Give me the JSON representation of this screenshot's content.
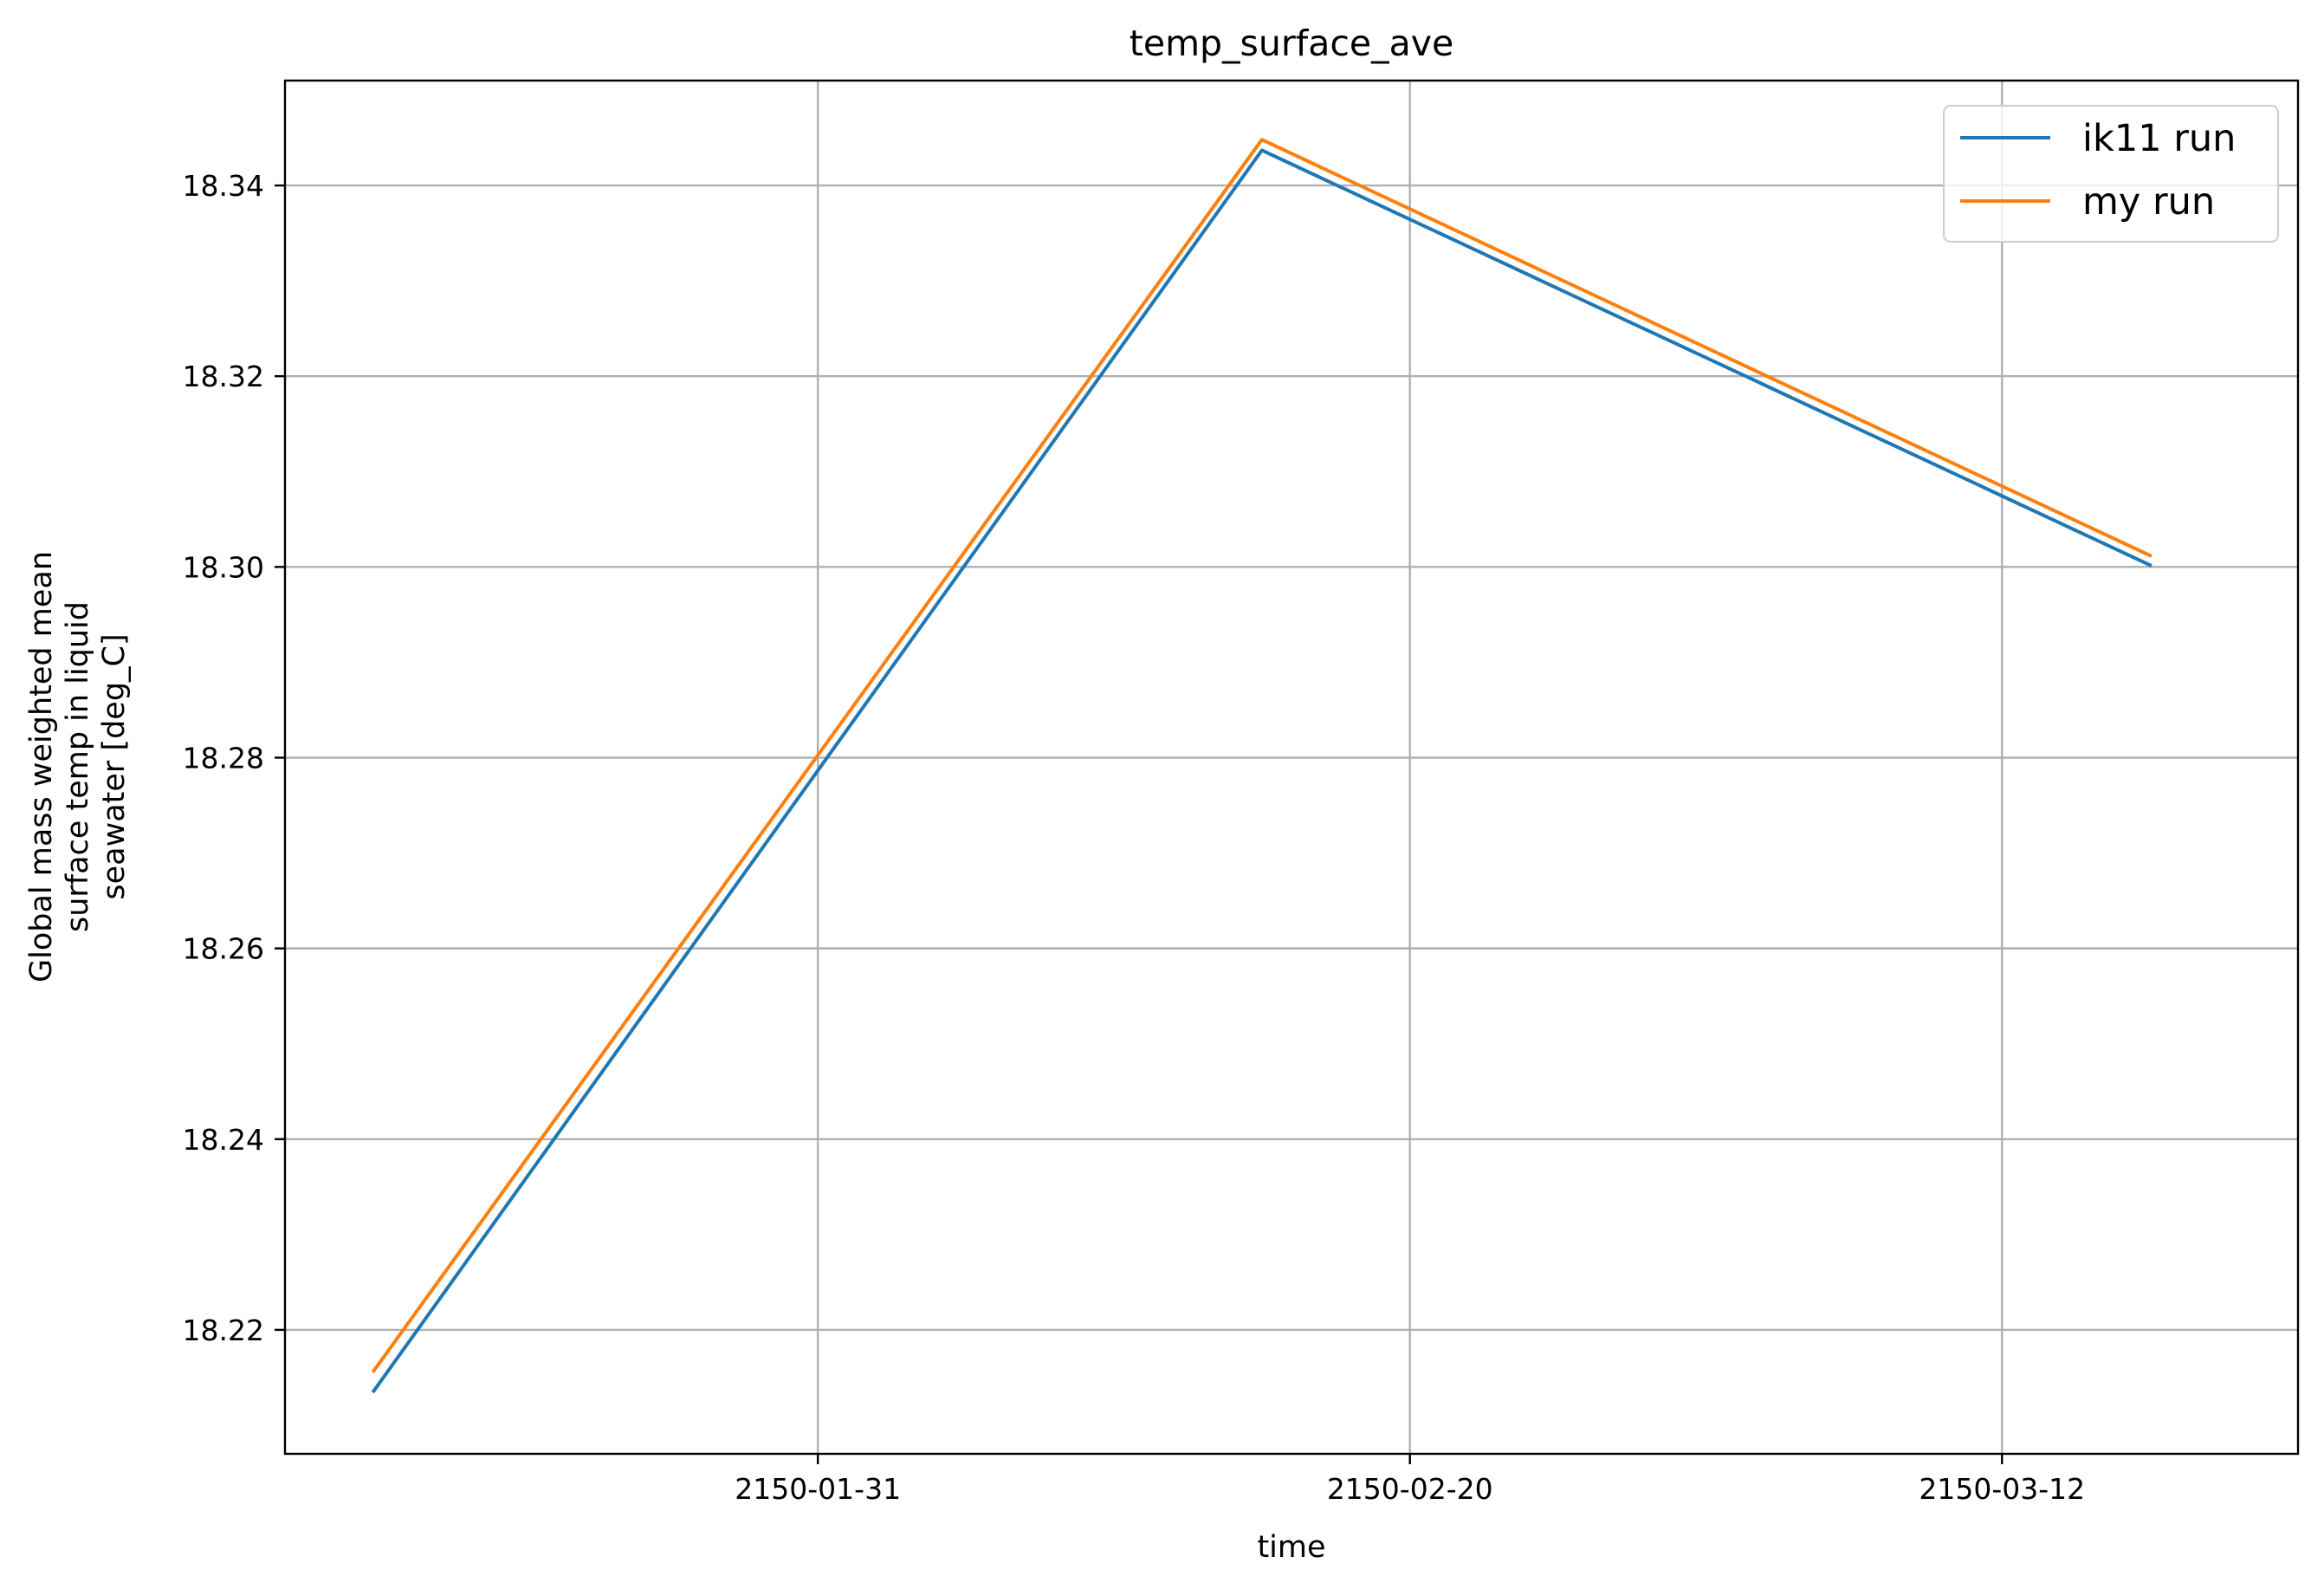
{
  "chart_data": {
    "type": "line",
    "title": "temp_surface_ave",
    "xlabel": "time",
    "ylabel": [
      "Global mass weighted mean",
      "surface temp in liquid",
      "seawater [deg_C]"
    ],
    "x": [
      "2150-01-16",
      "2150-02-15",
      "2150-03-17"
    ],
    "x_axis": {
      "kind": "date",
      "range": [
        "2150-01-13",
        "2150-03-22"
      ],
      "ticks": [
        "2150-01-31",
        "2150-02-20",
        "2150-03-12"
      ]
    },
    "y_axis": {
      "range": [
        18.207,
        18.351
      ],
      "ticks": [
        "18.22",
        "18.24",
        "18.26",
        "18.28",
        "18.30",
        "18.32",
        "18.34"
      ]
    },
    "grid": true,
    "legend_position": "top-right",
    "series": [
      {
        "name": "ik11 run",
        "color": "#1f77b4",
        "values": [
          18.2136,
          18.3437,
          18.3002
        ]
      },
      {
        "name": "my run",
        "color": "#ff7f0e",
        "values": [
          18.2157,
          18.3448,
          18.3012
        ]
      }
    ]
  }
}
